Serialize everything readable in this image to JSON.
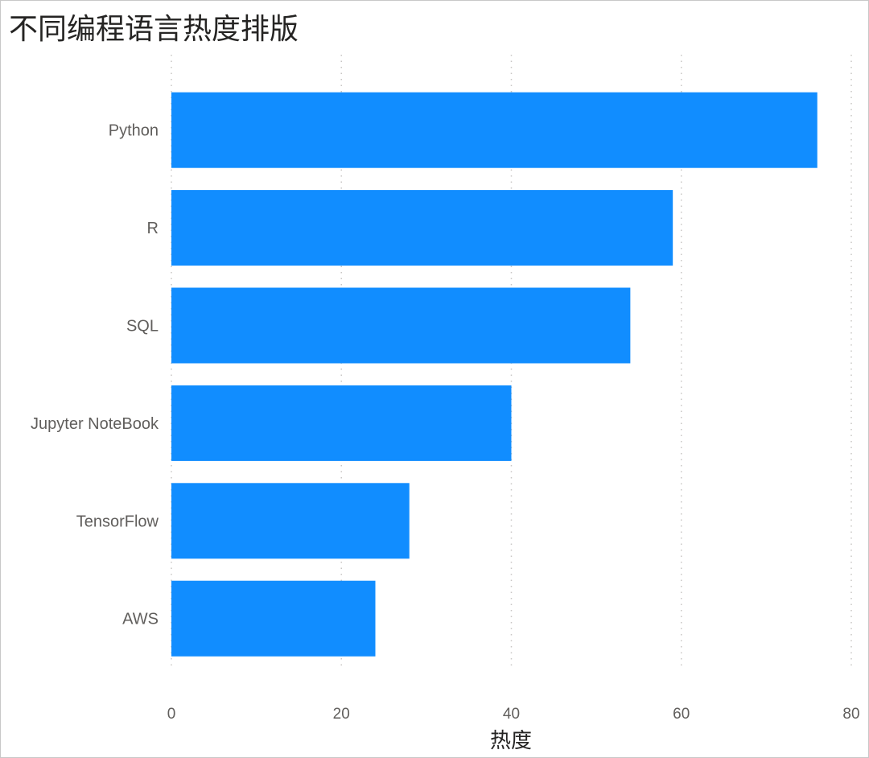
{
  "chart_data": {
    "type": "bar",
    "orientation": "horizontal",
    "title": "不同编程语言热度排版",
    "xlabel": "热度",
    "ylabel": "",
    "categories": [
      "Python",
      "R",
      "SQL",
      "Jupyter NoteBook",
      "TensorFlow",
      "AWS"
    ],
    "values": [
      76,
      59,
      54,
      40,
      28,
      24
    ],
    "xlim": [
      0,
      80
    ],
    "xticks": [
      0,
      20,
      40,
      60,
      80
    ],
    "grid": true,
    "bar_color": "#118dff"
  }
}
